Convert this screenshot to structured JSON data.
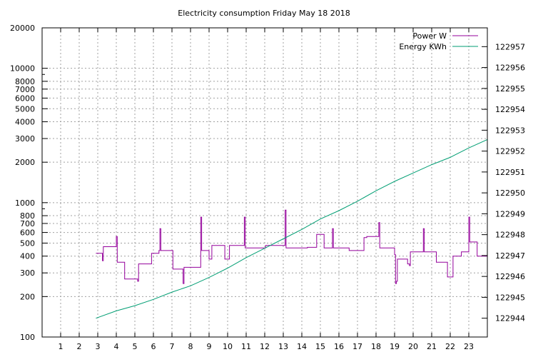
{
  "chart_data": {
    "type": "line",
    "title": "Electricity consumption Friday May 18 2018",
    "x_ticks": [
      1,
      2,
      3,
      4,
      5,
      6,
      7,
      8,
      9,
      10,
      11,
      12,
      13,
      14,
      15,
      16,
      17,
      18,
      19,
      20,
      21,
      22,
      23
    ],
    "xlim": [
      0,
      24
    ],
    "y_left": {
      "scale": "log",
      "ylim": [
        100,
        20000
      ],
      "tick_values": [
        100,
        200,
        300,
        400,
        500,
        600,
        700,
        800,
        1000,
        2000,
        3000,
        4000,
        5000,
        6000,
        7000,
        8000,
        10000,
        20000
      ]
    },
    "y_right": {
      "ylim": [
        122943.1,
        122957.9
      ],
      "tick_values": [
        122944,
        122945,
        122946,
        122947,
        122948,
        122949,
        122950,
        122951,
        122952,
        122953,
        122954,
        122955,
        122956,
        122957
      ]
    },
    "grid": true,
    "legend_position": "top-right",
    "series": [
      {
        "name": "Power W",
        "axis": "left",
        "color": "#94009b",
        "step": true,
        "points": [
          [
            2.9,
            420
          ],
          [
            3.2,
            420
          ],
          [
            3.25,
            370
          ],
          [
            3.3,
            470
          ],
          [
            3.95,
            470
          ],
          [
            4.0,
            560
          ],
          [
            4.05,
            360
          ],
          [
            4.4,
            360
          ],
          [
            4.45,
            270
          ],
          [
            4.7,
            270
          ],
          [
            5.1,
            270
          ],
          [
            5.15,
            260
          ],
          [
            5.2,
            350
          ],
          [
            5.85,
            350
          ],
          [
            5.9,
            420
          ],
          [
            6.1,
            420
          ],
          [
            6.3,
            440
          ],
          [
            6.35,
            640
          ],
          [
            6.4,
            440
          ],
          [
            7.0,
            440
          ],
          [
            7.05,
            320
          ],
          [
            7.5,
            320
          ],
          [
            7.6,
            250
          ],
          [
            7.65,
            330
          ],
          [
            8.5,
            330
          ],
          [
            8.55,
            780
          ],
          [
            8.6,
            440
          ],
          [
            8.9,
            440
          ],
          [
            9.0,
            380
          ],
          [
            9.15,
            480
          ],
          [
            9.8,
            480
          ],
          [
            9.85,
            380
          ],
          [
            10.05,
            380
          ],
          [
            10.1,
            480
          ],
          [
            10.85,
            480
          ],
          [
            10.9,
            780
          ],
          [
            10.95,
            460
          ],
          [
            12.0,
            460
          ],
          [
            12.05,
            480
          ],
          [
            13.05,
            480
          ],
          [
            13.1,
            880
          ],
          [
            13.15,
            460
          ],
          [
            14.2,
            460
          ],
          [
            14.3,
            465
          ],
          [
            14.7,
            465
          ],
          [
            14.8,
            580
          ],
          [
            15.15,
            580
          ],
          [
            15.2,
            460
          ],
          [
            15.6,
            460
          ],
          [
            15.65,
            640
          ],
          [
            15.7,
            460
          ],
          [
            16.5,
            460
          ],
          [
            16.55,
            440
          ],
          [
            17.3,
            440
          ],
          [
            17.35,
            550
          ],
          [
            17.5,
            560
          ],
          [
            18.1,
            560
          ],
          [
            18.15,
            710
          ],
          [
            18.2,
            460
          ],
          [
            18.95,
            460
          ],
          [
            19.0,
            410
          ],
          [
            19.05,
            250
          ],
          [
            19.1,
            260
          ],
          [
            19.15,
            380
          ],
          [
            19.65,
            380
          ],
          [
            19.7,
            350
          ],
          [
            19.8,
            340
          ],
          [
            19.85,
            430
          ],
          [
            20.5,
            430
          ],
          [
            20.55,
            640
          ],
          [
            20.6,
            430
          ],
          [
            21.2,
            430
          ],
          [
            21.25,
            360
          ],
          [
            21.8,
            360
          ],
          [
            21.85,
            280
          ],
          [
            22.1,
            280
          ],
          [
            22.15,
            400
          ],
          [
            22.55,
            400
          ],
          [
            22.6,
            430
          ],
          [
            22.95,
            430
          ],
          [
            23.0,
            780
          ],
          [
            23.05,
            510
          ],
          [
            23.4,
            510
          ],
          [
            23.45,
            400
          ],
          [
            24.0,
            400
          ]
        ]
      },
      {
        "name": "Energy KWh",
        "axis": "right",
        "color": "#009e73",
        "step": false,
        "points": [
          [
            2.9,
            122944.0
          ],
          [
            4.0,
            122944.35
          ],
          [
            5.0,
            122944.6
          ],
          [
            6.0,
            122944.9
          ],
          [
            7.0,
            122945.25
          ],
          [
            8.0,
            122945.55
          ],
          [
            9.0,
            122945.95
          ],
          [
            10.0,
            122946.4
          ],
          [
            11.0,
            122946.9
          ],
          [
            12.0,
            122947.35
          ],
          [
            13.0,
            122947.8
          ],
          [
            14.0,
            122948.25
          ],
          [
            15.0,
            122948.75
          ],
          [
            16.0,
            122949.15
          ],
          [
            17.0,
            122949.6
          ],
          [
            18.0,
            122950.1
          ],
          [
            19.0,
            122950.55
          ],
          [
            20.0,
            122950.95
          ],
          [
            21.0,
            122951.35
          ],
          [
            22.0,
            122951.7
          ],
          [
            23.0,
            122952.15
          ],
          [
            24.0,
            122952.55
          ]
        ]
      }
    ]
  }
}
